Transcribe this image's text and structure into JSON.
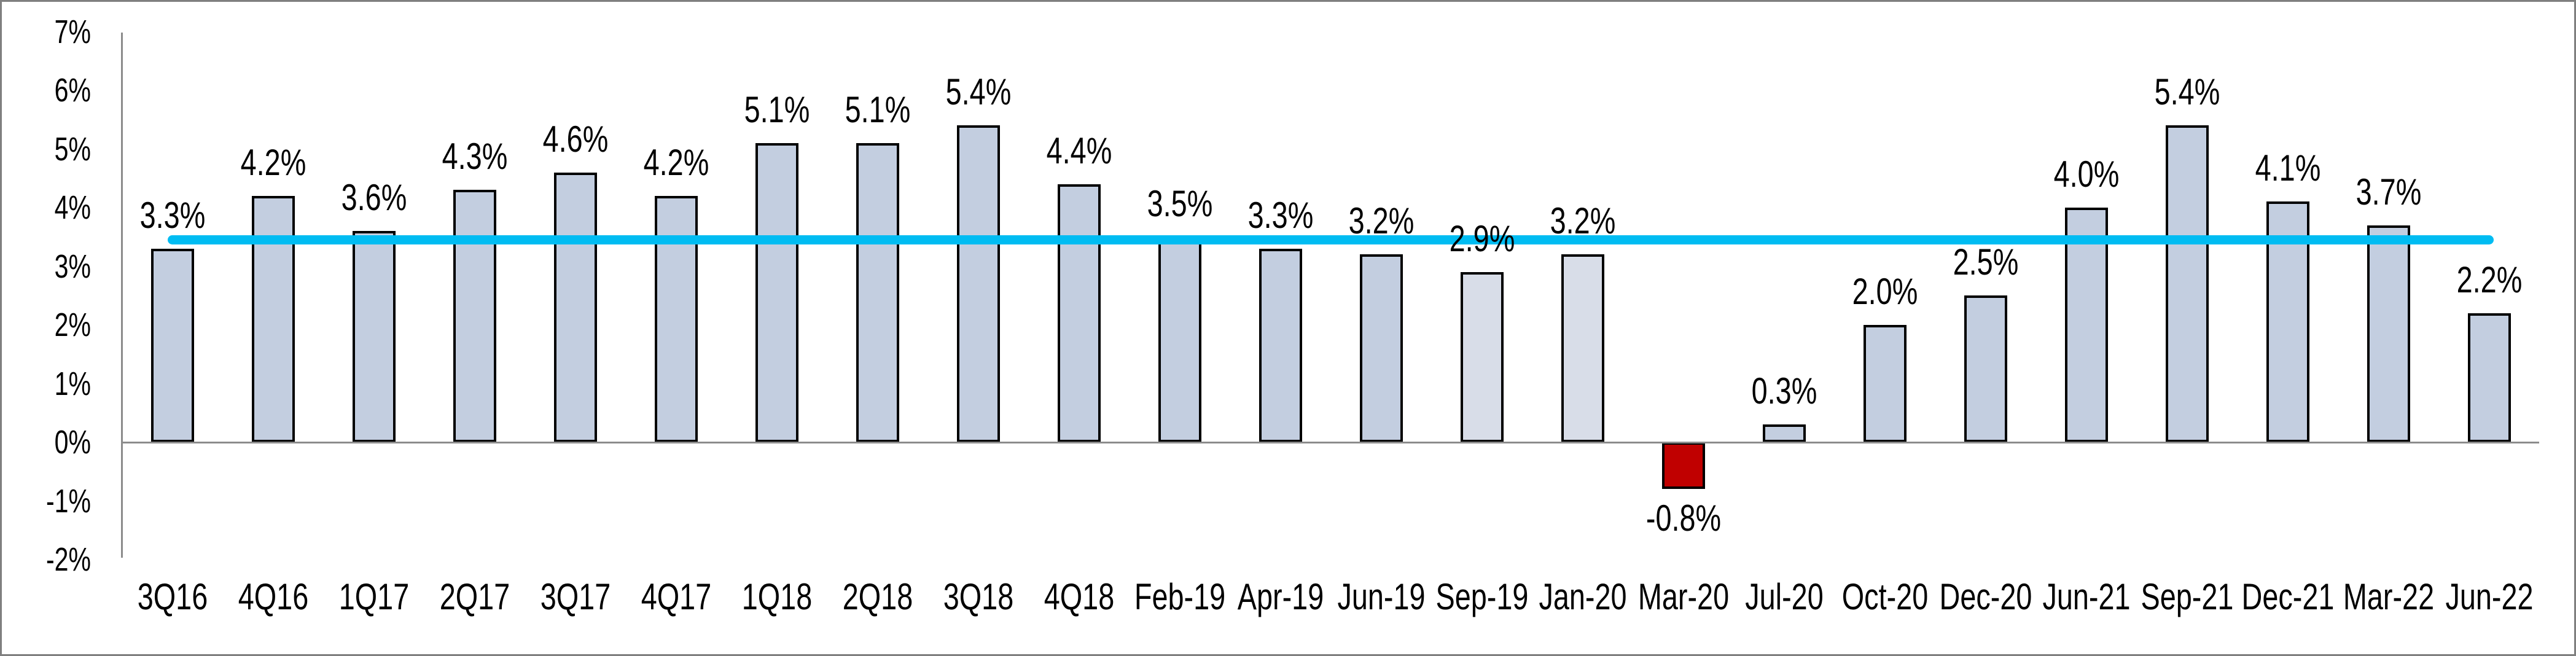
{
  "chart_data": {
    "type": "bar",
    "title": "",
    "grid": false,
    "legend": null,
    "y_axis": {
      "min": -2,
      "max": 7,
      "step": 1,
      "unit": "%",
      "tick_labels": [
        "7%",
        "6%",
        "5%",
        "4%",
        "3%",
        "2%",
        "1%",
        "0%",
        "-1%",
        "-2%"
      ],
      "tick_values": [
        7,
        6,
        5,
        4,
        3,
        2,
        1,
        0,
        -1,
        -2
      ]
    },
    "points": [
      {
        "category": "3Q16",
        "value": 3.3,
        "label": "3.3%",
        "style": "regular"
      },
      {
        "category": "4Q16",
        "value": 4.2,
        "label": "4.2%",
        "style": "regular"
      },
      {
        "category": "1Q17",
        "value": 3.6,
        "label": "3.6%",
        "style": "regular"
      },
      {
        "category": "2Q17",
        "value": 4.3,
        "label": "4.3%",
        "style": "regular"
      },
      {
        "category": "3Q17",
        "value": 4.6,
        "label": "4.6%",
        "style": "regular"
      },
      {
        "category": "4Q17",
        "value": 4.2,
        "label": "4.2%",
        "style": "regular"
      },
      {
        "category": "1Q18",
        "value": 5.1,
        "label": "5.1%",
        "style": "regular"
      },
      {
        "category": "2Q18",
        "value": 5.1,
        "label": "5.1%",
        "style": "regular"
      },
      {
        "category": "3Q18",
        "value": 5.4,
        "label": "5.4%",
        "style": "regular"
      },
      {
        "category": "4Q18",
        "value": 4.4,
        "label": "4.4%",
        "style": "regular"
      },
      {
        "category": "Feb-19",
        "value": 3.5,
        "label": "3.5%",
        "style": "regular"
      },
      {
        "category": "Apr-19",
        "value": 3.3,
        "label": "3.3%",
        "style": "regular"
      },
      {
        "category": "Jun-19",
        "value": 3.2,
        "label": "3.2%",
        "style": "regular"
      },
      {
        "category": "Sep-19",
        "value": 2.9,
        "label": "2.9%",
        "style": "light"
      },
      {
        "category": "Jan-20",
        "value": 3.2,
        "label": "3.2%",
        "style": "light"
      },
      {
        "category": "Mar-20",
        "value": -0.8,
        "label": "-0.8%",
        "style": "negative"
      },
      {
        "category": "Jul-20",
        "value": 0.3,
        "label": "0.3%",
        "style": "regular"
      },
      {
        "category": "Oct-20",
        "value": 2.0,
        "label": "2.0%",
        "style": "regular"
      },
      {
        "category": "Dec-20",
        "value": 2.5,
        "label": "2.5%",
        "style": "regular"
      },
      {
        "category": "Jun-21",
        "value": 4.0,
        "label": "4.0%",
        "style": "regular"
      },
      {
        "category": "Sep-21",
        "value": 5.4,
        "label": "5.4%",
        "style": "regular"
      },
      {
        "category": "Dec-21",
        "value": 4.1,
        "label": "4.1%",
        "style": "regular"
      },
      {
        "category": "Mar-22",
        "value": 3.7,
        "label": "3.7%",
        "style": "regular"
      },
      {
        "category": "Jun-22",
        "value": 2.2,
        "label": "2.2%",
        "style": "regular"
      }
    ],
    "average_line": {
      "value": 3.45,
      "color": "#00BCF2"
    },
    "colors": {
      "bar_regular": "#C3CEE0",
      "bar_light": "#D8DDE8",
      "bar_negative": "#C00000",
      "bar_border": "#000000",
      "axis": "#8C8C8C",
      "text": "#000000",
      "background": "#FFFFFF",
      "frame": "#7F7F7F"
    }
  }
}
